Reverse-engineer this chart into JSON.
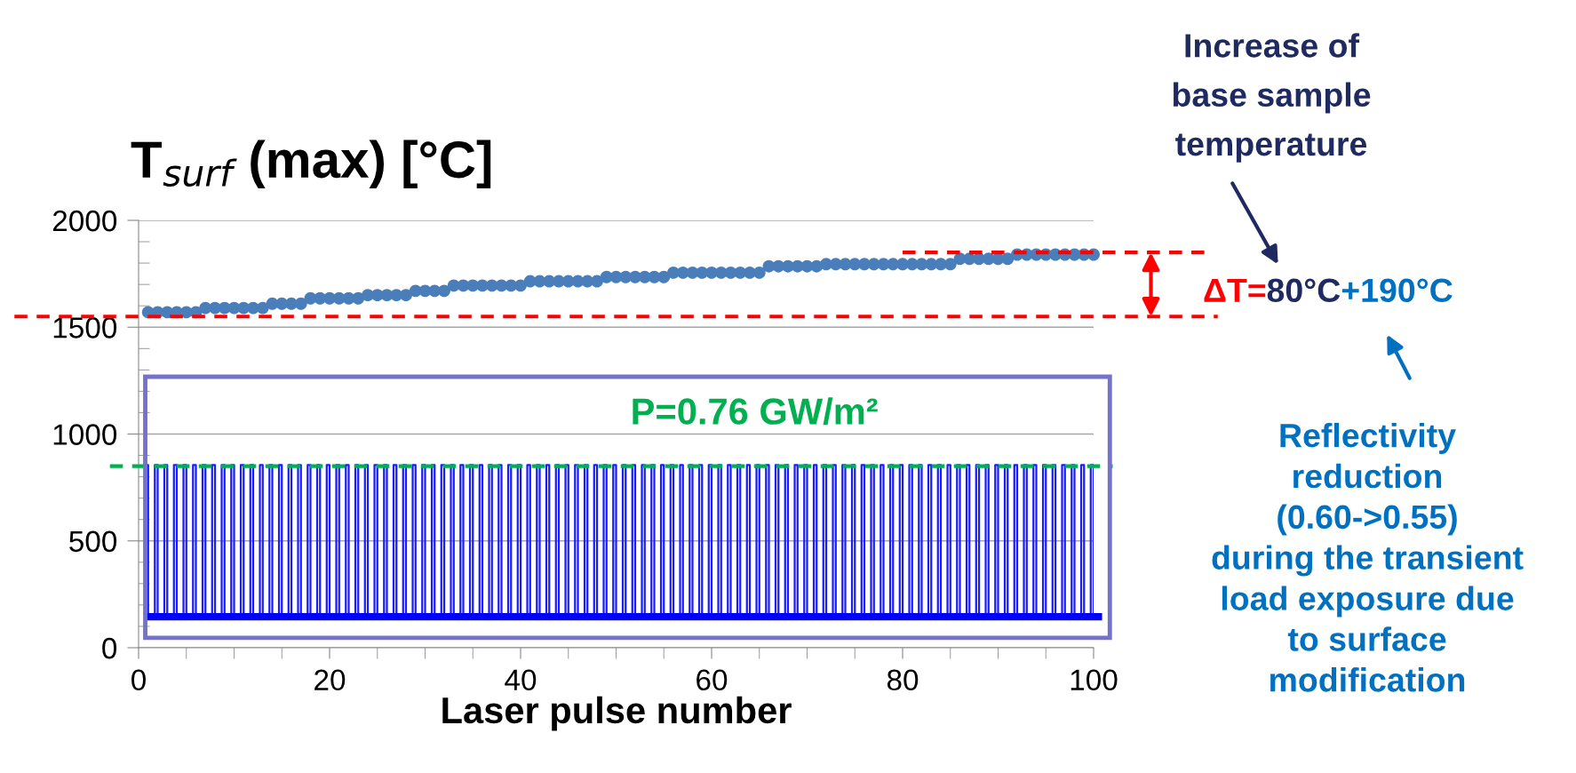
{
  "chart_data": {
    "type": "scatter",
    "title": "T$_{surf}$ (max) [°C]",
    "xlabel": "Laser pulse number",
    "x": [
      1,
      2,
      3,
      4,
      5,
      6,
      7,
      8,
      9,
      10,
      11,
      12,
      13,
      14,
      15,
      16,
      17,
      18,
      19,
      20,
      21,
      22,
      23,
      24,
      25,
      26,
      27,
      28,
      29,
      30,
      31,
      32,
      33,
      34,
      35,
      36,
      37,
      38,
      39,
      40,
      41,
      42,
      43,
      44,
      45,
      46,
      47,
      48,
      49,
      50,
      51,
      52,
      53,
      54,
      55,
      56,
      57,
      58,
      59,
      60,
      61,
      62,
      63,
      64,
      65,
      66,
      67,
      68,
      69,
      70,
      71,
      72,
      73,
      74,
      75,
      76,
      77,
      78,
      79,
      80,
      81,
      82,
      83,
      84,
      85,
      86,
      87,
      88,
      89,
      90,
      91,
      92,
      93,
      94,
      95,
      96,
      97,
      98,
      99,
      100
    ],
    "series": [
      {
        "marker": "circle",
        "color": "#4a7ebb",
        "values": [
          1570,
          1570,
          1570,
          1570,
          1570,
          1570,
          1590,
          1590,
          1590,
          1590,
          1590,
          1590,
          1590,
          1610,
          1610,
          1610,
          1610,
          1635,
          1635,
          1635,
          1635,
          1635,
          1635,
          1650,
          1650,
          1650,
          1650,
          1650,
          1670,
          1670,
          1670,
          1670,
          1695,
          1695,
          1695,
          1695,
          1695,
          1695,
          1695,
          1695,
          1715,
          1715,
          1715,
          1715,
          1715,
          1715,
          1715,
          1715,
          1735,
          1735,
          1735,
          1735,
          1735,
          1735,
          1735,
          1755,
          1755,
          1755,
          1755,
          1755,
          1755,
          1755,
          1755,
          1755,
          1755,
          1785,
          1785,
          1785,
          1785,
          1785,
          1785,
          1795,
          1795,
          1795,
          1795,
          1795,
          1795,
          1795,
          1795,
          1795,
          1795,
          1795,
          1795,
          1795,
          1795,
          1820,
          1820,
          1820,
          1820,
          1820,
          1820,
          1840,
          1840,
          1840,
          1840,
          1840,
          1840,
          1840,
          1840,
          1840
        ]
      },
      {
        "type": "step",
        "color": "#1a1aff",
        "x": [
          0.7,
          1,
          1.7,
          2,
          2.7,
          3,
          3.7,
          4,
          4.7,
          5,
          5.7,
          6,
          6.7,
          7,
          7.7,
          8,
          8.7,
          9,
          9.7,
          10,
          10.7,
          11,
          11.7,
          12,
          12.7,
          13,
          13.7,
          14,
          14.7,
          15,
          15.7,
          16,
          16.7,
          17,
          17.7,
          18,
          18.7,
          19,
          19.7,
          20,
          20.7,
          21,
          21.7,
          22,
          22.7,
          23,
          23.7,
          24,
          24.7,
          25,
          25.7,
          26,
          26.7,
          27,
          27.7,
          28,
          28.7,
          29,
          29.7,
          30,
          30.7,
          31,
          31.7,
          32,
          32.7,
          33,
          33.7,
          34,
          34.7,
          35,
          35.7,
          36,
          36.7,
          37,
          37.7,
          38,
          38.7,
          39,
          39.7,
          40,
          40.7,
          41,
          41.7,
          42,
          42.7,
          43,
          43.7,
          44,
          44.7,
          45,
          45.7,
          46,
          46.7,
          47,
          47.7,
          48,
          48.7,
          49,
          49.7,
          50,
          50.7,
          51,
          51.7,
          52,
          52.7,
          53,
          53.7,
          54,
          54.7,
          55,
          55.7,
          56,
          56.7,
          57,
          57.7,
          58,
          58.7,
          59,
          59.7,
          60,
          60.7,
          61,
          61.7,
          62,
          62.7,
          63,
          63.7,
          64,
          64.7,
          65,
          65.7,
          66,
          66.7,
          67,
          67.7,
          68,
          68.7,
          69,
          69.7,
          70,
          70.7,
          71,
          71.7,
          72,
          72.7,
          73,
          73.7,
          74,
          74.7,
          75,
          75.7,
          76,
          76.7,
          77,
          77.7,
          78,
          78.7,
          79,
          79.7,
          80,
          80.7,
          81,
          81.7,
          82,
          82.7,
          83,
          83.7,
          84,
          84.7,
          85,
          85.7,
          86,
          86.7,
          87,
          87.7,
          88,
          88.7,
          89,
          89.7,
          90,
          90.7,
          91,
          91.7,
          92,
          92.7,
          93,
          93.7,
          94,
          94.7,
          95,
          95.7,
          96,
          96.7,
          97,
          97.7,
          98,
          98.7,
          99,
          99.7,
          100
        ],
        "values": [
          855,
          145,
          855,
          145,
          855,
          145,
          855,
          145,
          855,
          145,
          855,
          145,
          855,
          145,
          855,
          145,
          855,
          145,
          855,
          145,
          855,
          145,
          855,
          145,
          855,
          145,
          855,
          145,
          855,
          145,
          855,
          145,
          855,
          145,
          855,
          145,
          855,
          145,
          855,
          145,
          855,
          145,
          855,
          145,
          855,
          145,
          855,
          145,
          855,
          145,
          855,
          145,
          855,
          145,
          855,
          145,
          855,
          145,
          855,
          145,
          855,
          145,
          855,
          145,
          855,
          145,
          855,
          145,
          855,
          145,
          855,
          145,
          855,
          145,
          855,
          145,
          855,
          145,
          855,
          145,
          855,
          145,
          855,
          145,
          855,
          145,
          855,
          145,
          855,
          145,
          855,
          145,
          855,
          145,
          855,
          145,
          855,
          145,
          855,
          145,
          855,
          145,
          855,
          145,
          855,
          145,
          855,
          145,
          855,
          145,
          855,
          145,
          855,
          145,
          855,
          145,
          855,
          145,
          855,
          145,
          855,
          145,
          855,
          145,
          855,
          145,
          855,
          145,
          855,
          145,
          855,
          145,
          855,
          145,
          855,
          145,
          855,
          145,
          855,
          145,
          855,
          145,
          855,
          145,
          855,
          145,
          855,
          145,
          855,
          145,
          855,
          145,
          855,
          145,
          855,
          145,
          855,
          145,
          855,
          145,
          855,
          145,
          855,
          145,
          855,
          145,
          855,
          145,
          855,
          145,
          855,
          145,
          855,
          145,
          855,
          145,
          855,
          145,
          855,
          145,
          855,
          145,
          855,
          145,
          855,
          145,
          855,
          145,
          855,
          145,
          855,
          145,
          855,
          145,
          855,
          145,
          855,
          145,
          855,
          145
        ]
      }
    ],
    "xlim": [
      0,
      100
    ],
    "ylim": [
      0,
      2000
    ],
    "xticks": [
      0,
      {
        "value": 5,
        "label": null
      },
      {
        "value": 10,
        "label": null
      },
      {
        "value": 15,
        "label": null
      },
      20,
      {
        "value": 25,
        "label": null
      },
      {
        "value": 30,
        "label": null
      },
      {
        "value": 35,
        "label": null
      },
      40,
      {
        "value": 45,
        "label": null
      },
      {
        "value": 50,
        "label": null
      },
      {
        "value": 55,
        "label": null
      },
      60,
      {
        "value": 65,
        "label": null
      },
      {
        "value": 70,
        "label": null
      },
      {
        "value": 75,
        "label": null
      },
      80,
      {
        "value": 85,
        "label": null
      },
      {
        "value": 90,
        "label": null
      },
      {
        "value": 95,
        "label": null
      },
      100
    ],
    "yticks": [
      0,
      {
        "value": 100,
        "label": null
      },
      {
        "value": 200,
        "label": null
      },
      {
        "value": 300,
        "label": null
      },
      {
        "value": 400,
        "label": null
      },
      500,
      {
        "value": 600,
        "label": null
      },
      {
        "value": 700,
        "label": null
      },
      {
        "value": 800,
        "label": null
      },
      {
        "value": 900,
        "label": null
      },
      1000,
      {
        "value": 1100,
        "label": null
      },
      {
        "value": 1200,
        "label": null
      },
      {
        "value": 1300,
        "label": null
      },
      {
        "value": 1400,
        "label": null
      },
      1500,
      {
        "value": 1600,
        "label": null
      },
      {
        "value": 1700,
        "label": null
      },
      {
        "value": 1800,
        "label": null
      },
      {
        "value": 1900,
        "label": null
      },
      2000
    ],
    "grid": "y",
    "ref_lines": [
      {
        "axis": "y",
        "value": 1550,
        "color": "#ff0000",
        "line_style": "dashed"
      },
      {
        "axis": "y",
        "value": 1850,
        "color": "#ff0000",
        "line_style": "dashed"
      },
      {
        "axis": "y",
        "value": 850,
        "color": "#00b050",
        "line_style": "dashed"
      },
      {
        "axis": "y",
        "value": 145,
        "color": "#0000ff",
        "line_style": "solid"
      }
    ],
    "annotations": [
      "Increase of\nbase sample\ntemperature",
      "ΔT=",
      "80°C",
      "+190°C",
      "Reflectivity\nreduction\n(0.60->0.55)\nduring the transient\nload exposure due\nto surface\nmodification",
      "P=0.76 GW/m²"
    ]
  }
}
